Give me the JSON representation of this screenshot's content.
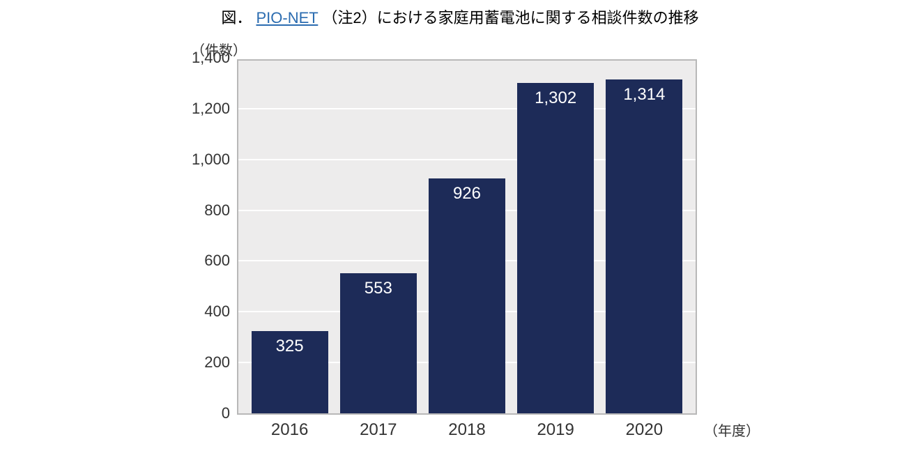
{
  "title": {
    "prefix": "図．",
    "link_text": "PIO-NET",
    "suffix": "（注2）における家庭用蓄電池に関する相談件数の推移"
  },
  "chart": {
    "type": "bar",
    "y_axis_label": "（件数）",
    "x_axis_label": "（年度）",
    "ylim": [
      0,
      1400
    ],
    "ytick_step": 200,
    "yticks": [
      "0",
      "200",
      "400",
      "600",
      "800",
      "1,000",
      "1,200",
      "1,400"
    ],
    "categories": [
      "2016",
      "2017",
      "2018",
      "2019",
      "2020"
    ],
    "values": [
      325,
      553,
      926,
      1302,
      1314
    ],
    "value_labels": [
      "325",
      "553",
      "926",
      "1,302",
      "1,314"
    ],
    "bar_color": "#1d2b58",
    "bar_label_color": "#ffffff",
    "bar_label_fontsize": 24,
    "plot_background": "#edecec",
    "grid_color": "#ffffff",
    "border_color": "#b8b8b8",
    "tick_fontsize": 22,
    "title_fontsize": 22,
    "axis_label_fontsize": 20,
    "bar_width_ratio": 0.83
  }
}
